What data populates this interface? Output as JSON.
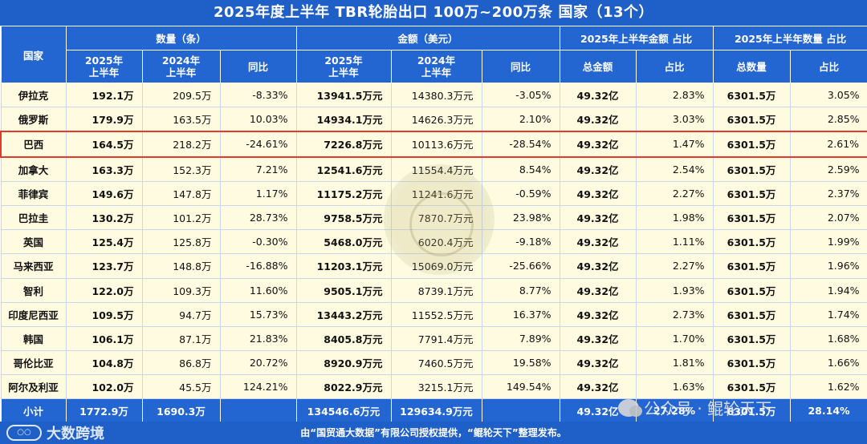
{
  "title": "2025年度上半年 TBR轮胎出口 100万~200万条 国家（13个）",
  "headers": {
    "country": "国家",
    "quantity_group": "数量（条）",
    "amount_group": "金额（美元）",
    "amount_share_group": "2025年上半年金额 占比",
    "quantity_share_group": "2025年上半年数量 占比",
    "sub": {
      "y2025_a": "2025年",
      "y2025_b": "上半年",
      "y2024_a": "2024年",
      "y2024_b": "上半年",
      "yoy": "同比",
      "total_amount": "总金额",
      "share": "占比",
      "total_quantity": "总数量"
    }
  },
  "rows": [
    {
      "country": "伊拉克",
      "q2025": "192.1万",
      "q2024": "209.5万",
      "q_yoy": "-8.33%",
      "a2025": "13941.5万元",
      "a2024": "14380.3万元",
      "a_yoy": "-3.05%",
      "total_amount": "49.32亿",
      "amount_share": "2.83%",
      "total_quantity": "6301.5万",
      "quantity_share": "3.05%"
    },
    {
      "country": "俄罗斯",
      "q2025": "179.9万",
      "q2024": "163.5万",
      "q_yoy": "10.03%",
      "a2025": "14934.1万元",
      "a2024": "14626.3万元",
      "a_yoy": "2.10%",
      "total_amount": "49.32亿",
      "amount_share": "3.03%",
      "total_quantity": "6301.5万",
      "quantity_share": "2.85%"
    },
    {
      "country": "巴西",
      "q2025": "164.5万",
      "q2024": "218.2万",
      "q_yoy": "-24.61%",
      "a2025": "7226.8万元",
      "a2024": "10113.6万元",
      "a_yoy": "-28.54%",
      "total_amount": "49.32亿",
      "amount_share": "1.47%",
      "total_quantity": "6301.5万",
      "quantity_share": "2.61%"
    },
    {
      "country": "加拿大",
      "q2025": "163.3万",
      "q2024": "152.3万",
      "q_yoy": "7.21%",
      "a2025": "12541.6万元",
      "a2024": "11554.4万元",
      "a_yoy": "8.54%",
      "total_amount": "49.32亿",
      "amount_share": "2.54%",
      "total_quantity": "6301.5万",
      "quantity_share": "2.59%"
    },
    {
      "country": "菲律宾",
      "q2025": "149.6万",
      "q2024": "147.8万",
      "q_yoy": "1.17%",
      "a2025": "11175.2万元",
      "a2024": "11241.6万元",
      "a_yoy": "-0.59%",
      "total_amount": "49.32亿",
      "amount_share": "2.27%",
      "total_quantity": "6301.5万",
      "quantity_share": "2.37%"
    },
    {
      "country": "巴拉圭",
      "q2025": "130.2万",
      "q2024": "101.2万",
      "q_yoy": "28.73%",
      "a2025": "9758.5万元",
      "a2024": "7870.7万元",
      "a_yoy": "23.98%",
      "total_amount": "49.32亿",
      "amount_share": "1.98%",
      "total_quantity": "6301.5万",
      "quantity_share": "2.07%"
    },
    {
      "country": "英国",
      "q2025": "125.4万",
      "q2024": "125.8万",
      "q_yoy": "-0.30%",
      "a2025": "5468.0万元",
      "a2024": "6020.4万元",
      "a_yoy": "-9.18%",
      "total_amount": "49.32亿",
      "amount_share": "1.11%",
      "total_quantity": "6301.5万",
      "quantity_share": "1.99%"
    },
    {
      "country": "马来西亚",
      "q2025": "123.7万",
      "q2024": "148.8万",
      "q_yoy": "-16.88%",
      "a2025": "11203.1万元",
      "a2024": "15069.0万元",
      "a_yoy": "-25.66%",
      "total_amount": "49.32亿",
      "amount_share": "2.27%",
      "total_quantity": "6301.5万",
      "quantity_share": "1.96%"
    },
    {
      "country": "智利",
      "q2025": "122.0万",
      "q2024": "109.3万",
      "q_yoy": "11.60%",
      "a2025": "9505.1万元",
      "a2024": "8739.1万元",
      "a_yoy": "8.77%",
      "total_amount": "49.32亿",
      "amount_share": "1.93%",
      "total_quantity": "6301.5万",
      "quantity_share": "1.94%"
    },
    {
      "country": "印度尼西亚",
      "q2025": "109.5万",
      "q2024": "94.7万",
      "q_yoy": "15.73%",
      "a2025": "13443.2万元",
      "a2024": "11552.5万元",
      "a_yoy": "16.37%",
      "total_amount": "49.32亿",
      "amount_share": "2.73%",
      "total_quantity": "6301.5万",
      "quantity_share": "1.74%"
    },
    {
      "country": "韩国",
      "q2025": "106.1万",
      "q2024": "87.1万",
      "q_yoy": "21.83%",
      "a2025": "8405.8万元",
      "a2024": "7791.4万元",
      "a_yoy": "7.89%",
      "total_amount": "49.32亿",
      "amount_share": "1.70%",
      "total_quantity": "6301.5万",
      "quantity_share": "1.68%"
    },
    {
      "country": "哥伦比亚",
      "q2025": "104.8万",
      "q2024": "86.8万",
      "q_yoy": "20.72%",
      "a2025": "8920.9万元",
      "a2024": "7460.5万元",
      "a_yoy": "19.58%",
      "total_amount": "49.32亿",
      "amount_share": "1.81%",
      "total_quantity": "6301.5万",
      "quantity_share": "1.66%"
    },
    {
      "country": "阿尔及利亚",
      "q2025": "102.0万",
      "q2024": "45.5万",
      "q_yoy": "124.21%",
      "a2025": "8022.9万元",
      "a2024": "3215.1万元",
      "a_yoy": "149.54%",
      "total_amount": "49.32亿",
      "amount_share": "1.63%",
      "total_quantity": "6301.5万",
      "quantity_share": "1.62%"
    }
  ],
  "subtotal": {
    "label": "小计",
    "q2025": "1772.9万",
    "q2024": "1690.3万",
    "q_yoy": "",
    "a2025": "134546.6万元",
    "a2024": "129634.9万元",
    "a_yoy": "",
    "total_amount": "49.32亿",
    "amount_share": "27.28%",
    "total_quantity": "6301.5万",
    "quantity_share": "28.14%"
  },
  "footer": "由“国贸通大数据”有限公司授权提供，“鲲轮天下”整理发布。",
  "watermark_left": "大数跨境",
  "watermark_wechat": "公众号 · 鲲轮天下",
  "highlight_country": "巴西",
  "colors": {
    "header_blue": "#2466d1",
    "row_bg": "#fffbe0",
    "highlight": "#e5392a"
  }
}
